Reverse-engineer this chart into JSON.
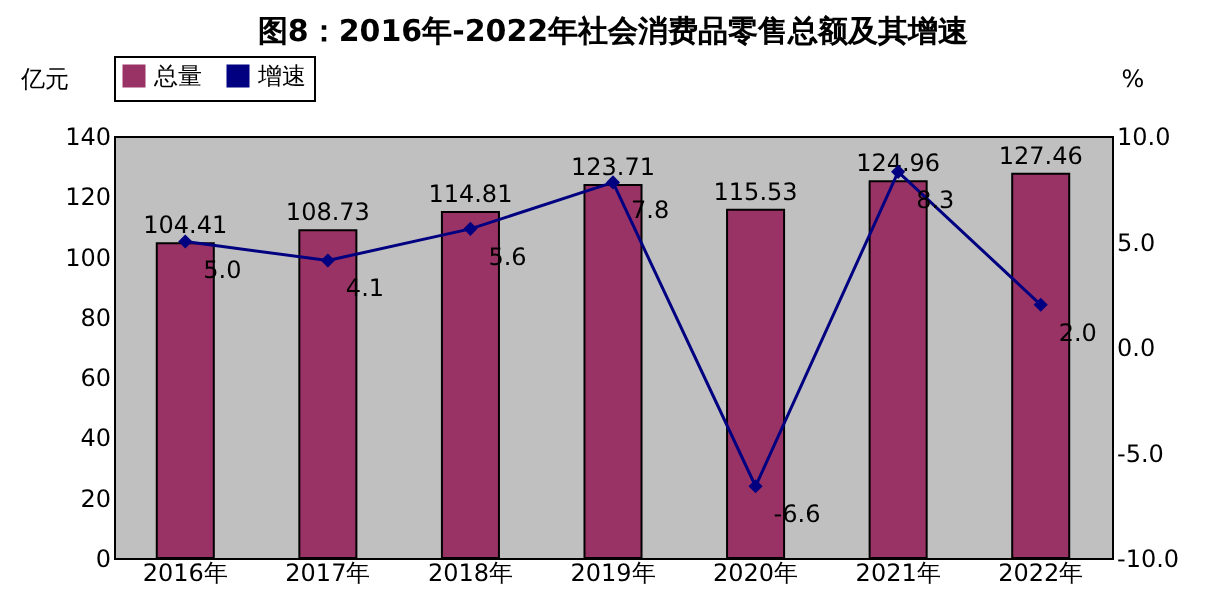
{
  "chart_data": {
    "type": "bar",
    "title": "图8：2016年-2022年社会消费品零售总额及其增速",
    "ylabel": "亿元",
    "y2label": "%",
    "categories": [
      "2016年",
      "2017年",
      "2018年",
      "2019年",
      "2020年",
      "2021年",
      "2022年"
    ],
    "series": [
      {
        "name": "总量",
        "color": "#993366",
        "values": [
          104.41,
          108.73,
          114.81,
          123.71,
          115.53,
          124.96,
          127.46
        ],
        "value_labels": [
          "104.41",
          "108.73",
          "114.81",
          "123.71",
          "115.53",
          "124.96",
          "127.46"
        ]
      },
      {
        "name": "增速",
        "type": "line",
        "axis": "y2",
        "color": "#000080",
        "marker": "diamond",
        "values": [
          5.0,
          4.1,
          5.6,
          7.8,
          -6.6,
          8.3,
          2.0
        ],
        "value_labels": [
          "5.0",
          "4.1",
          "5.6",
          "7.8",
          "-6.6",
          "8.3",
          "2.0"
        ]
      }
    ],
    "ylim": [
      0,
      140
    ],
    "yticks": [
      0,
      20,
      40,
      60,
      80,
      100,
      120,
      140
    ],
    "y2lim": [
      -10,
      10
    ],
    "y2ticks": [
      {
        "value": -10,
        "label": "-10.0"
      },
      {
        "value": -5,
        "label": "-5.0"
      },
      {
        "value": 0,
        "label": "0.0"
      },
      {
        "value": 5,
        "label": "5.0"
      },
      {
        "value": 10,
        "label": "10.0"
      }
    ],
    "legend": "top",
    "grid": false
  }
}
